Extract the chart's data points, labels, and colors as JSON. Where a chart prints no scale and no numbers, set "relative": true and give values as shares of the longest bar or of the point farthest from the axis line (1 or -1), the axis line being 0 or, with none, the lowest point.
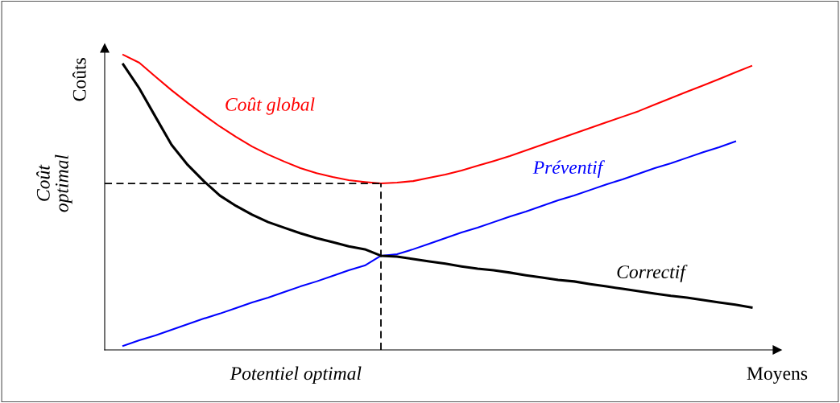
{
  "chart_data": {
    "type": "line",
    "relative": true,
    "ylabel": "Coûts",
    "xlabel": "Moyens",
    "annotations": [
      "Potentiel optimal"
    ],
    "categories": [
      null,
      null,
      null,
      null,
      null,
      null,
      null,
      null,
      null,
      null,
      null,
      null,
      null,
      null,
      null,
      null,
      null,
      null,
      null,
      null,
      null,
      null,
      null,
      null,
      null,
      null,
      null,
      null,
      null,
      null,
      null,
      null,
      null,
      null,
      null,
      null,
      null,
      null,
      null,
      null
    ],
    "series": [
      {
        "name": "Coût global",
        "color": "#ff0000",
        "values": [
          1.0,
          0.973,
          0.926,
          0.88,
          0.837,
          0.796,
          0.757,
          0.722,
          0.689,
          0.662,
          0.638,
          0.616,
          0.599,
          0.586,
          0.575,
          0.569,
          0.564,
          0.567,
          0.572,
          0.583,
          0.594,
          0.608,
          0.624,
          0.64,
          0.657,
          0.676,
          0.695,
          0.714,
          0.733,
          0.752,
          0.771,
          0.79,
          0.809,
          0.831,
          0.853,
          0.875,
          0.896,
          0.918,
          0.94,
          0.962
        ]
      },
      {
        "name": "Préventif",
        "color": "#0000ff",
        "values": [
          0.014,
          0.033,
          0.049,
          0.068,
          0.087,
          0.106,
          0.123,
          0.142,
          0.161,
          0.177,
          0.196,
          0.215,
          0.232,
          0.251,
          0.27,
          0.286,
          0.319,
          0.324,
          0.341,
          0.36,
          0.379,
          0.398,
          0.414,
          0.433,
          0.452,
          0.469,
          0.488,
          0.507,
          0.523,
          0.542,
          0.561,
          0.578,
          0.597,
          0.616,
          0.632,
          0.651,
          0.67,
          0.687,
          0.706,
          null
        ]
      },
      {
        "name": "Correctif",
        "color": "#000000",
        "values": [
          0.967,
          0.886,
          0.79,
          0.695,
          0.627,
          0.572,
          0.523,
          0.488,
          0.458,
          0.433,
          0.414,
          0.395,
          0.379,
          0.365,
          0.351,
          0.341,
          0.319,
          0.316,
          0.308,
          0.3,
          0.292,
          0.283,
          0.275,
          0.27,
          0.262,
          0.253,
          0.245,
          0.237,
          0.232,
          0.223,
          0.215,
          0.207,
          0.199,
          0.191,
          0.183,
          0.177,
          0.169,
          0.161,
          0.153,
          0.144
        ]
      }
    ],
    "ref_lines": [
      {
        "axis": "y",
        "value": 0.564,
        "label": "Coût\noptimal",
        "color": "#000000",
        "line_style": "dashed"
      }
    ]
  }
}
